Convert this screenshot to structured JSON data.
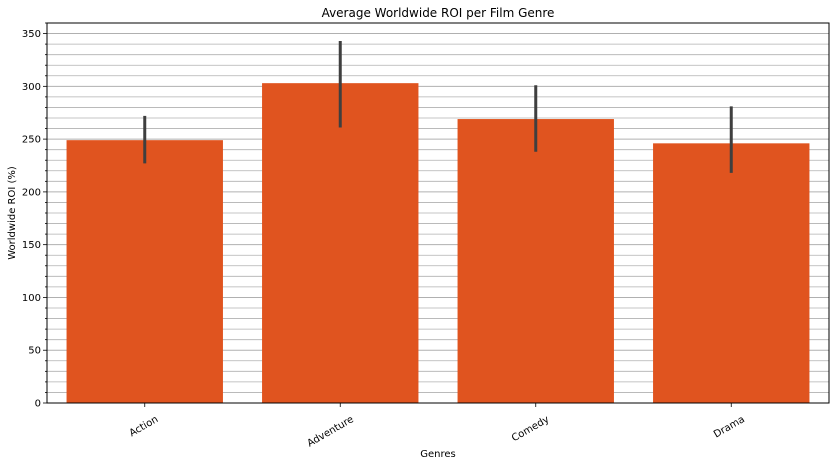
{
  "chart_data": {
    "type": "bar",
    "title": "Average Worldwide ROI per Film Genre",
    "xlabel": "Genres",
    "ylabel": "Worldwide ROI (%)",
    "categories": [
      "Action",
      "Adventure",
      "Comedy",
      "Drama"
    ],
    "values": [
      249,
      303,
      269,
      246
    ],
    "error_bars": [
      {
        "low": 227,
        "high": 272
      },
      {
        "low": 261,
        "high": 343
      },
      {
        "low": 238,
        "high": 301
      },
      {
        "low": 218,
        "high": 281
      }
    ],
    "ylim": [
      0,
      360
    ],
    "yticks": [
      0,
      50,
      100,
      150,
      200,
      250,
      300,
      350
    ],
    "minor_ytick_step": 10,
    "grid": "horizontal major and minor",
    "legend": "none",
    "bar_color": "#e0541f",
    "error_color": "#3f3f3f",
    "grid_color": "#b0b0b0"
  }
}
